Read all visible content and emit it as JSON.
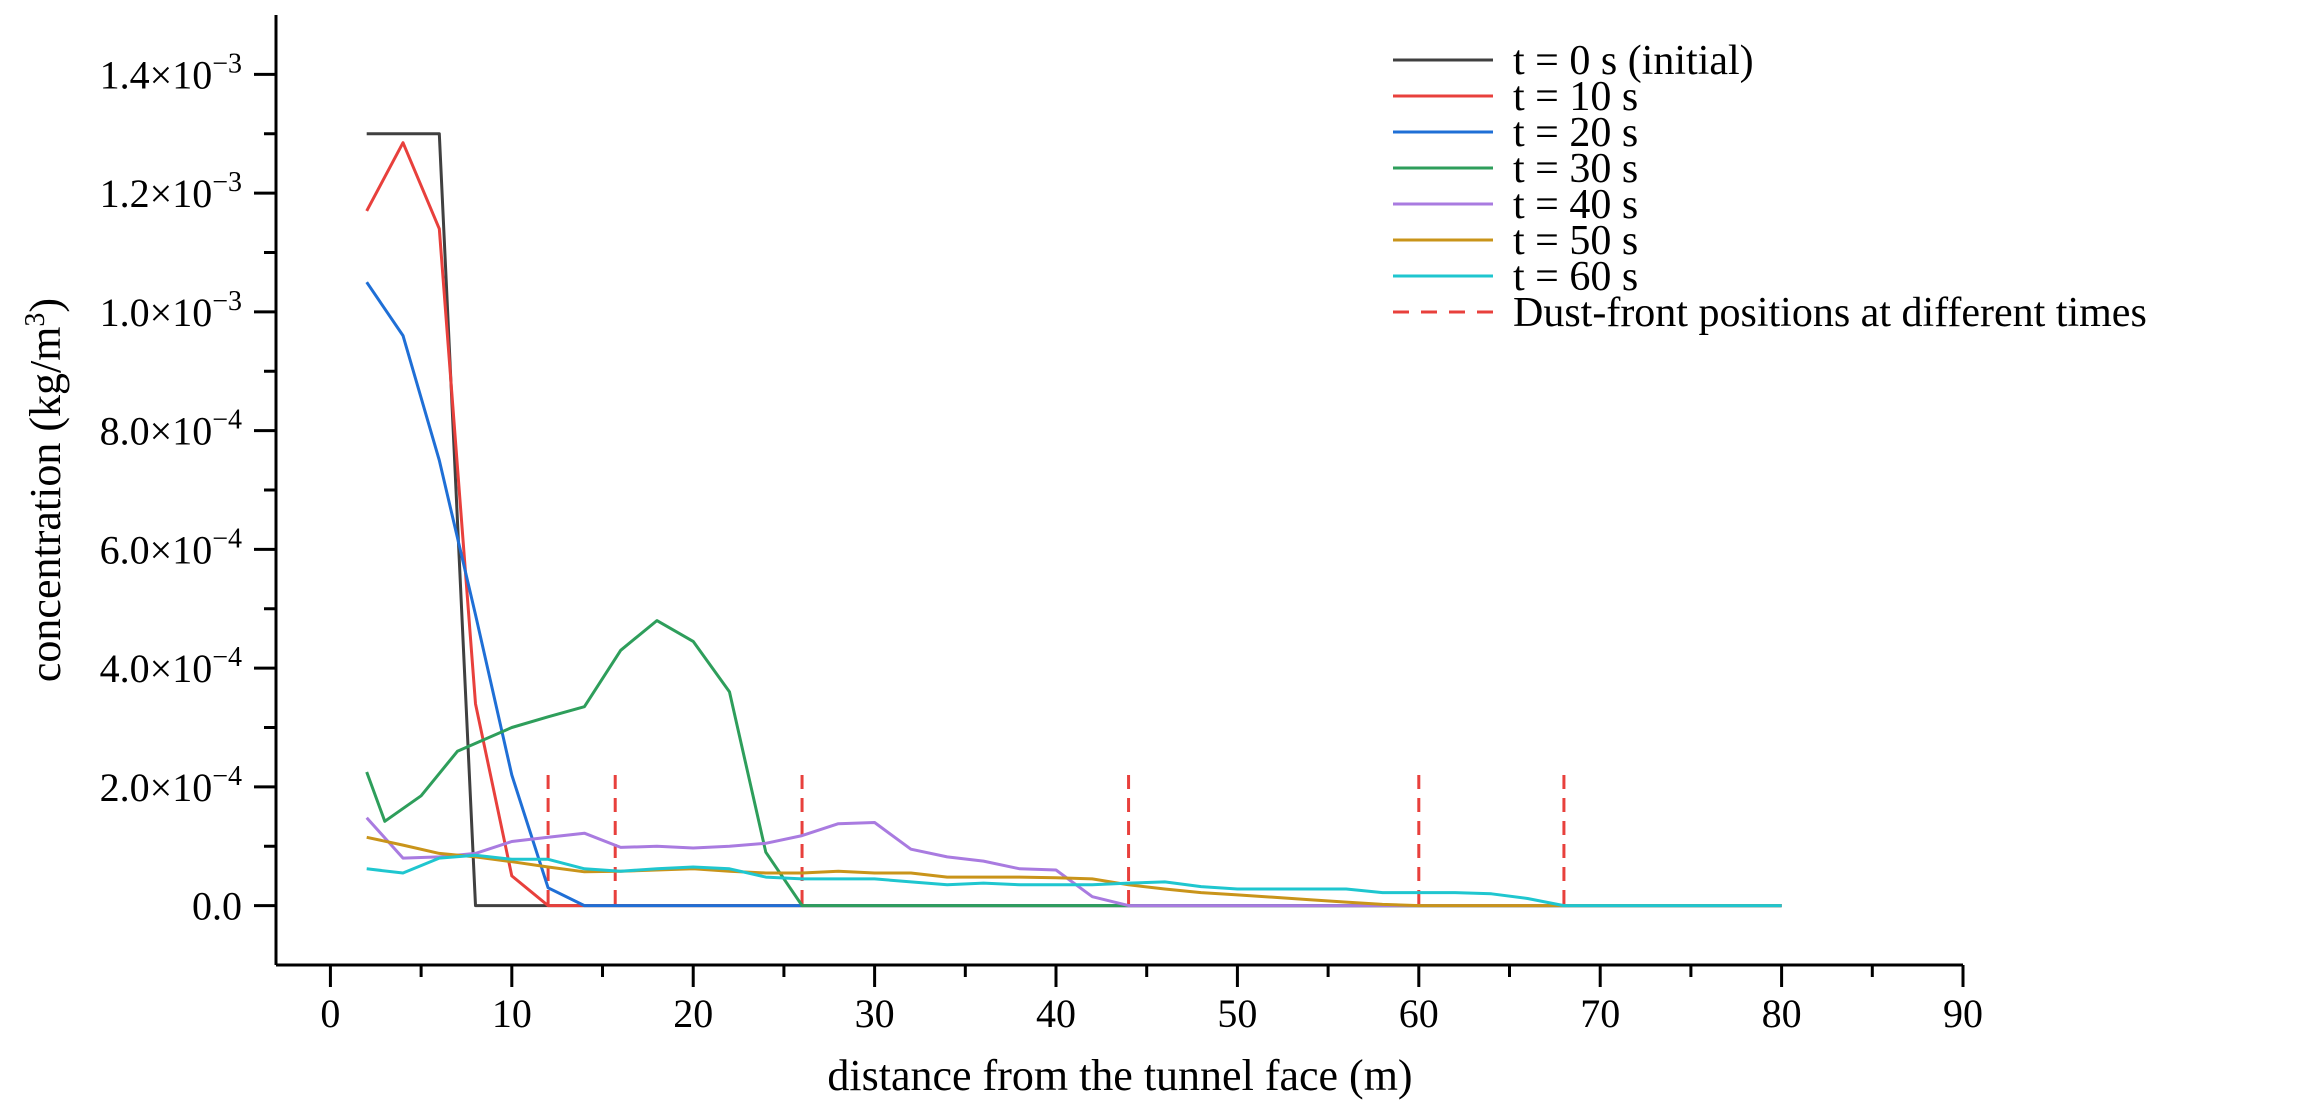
{
  "chart_data": {
    "type": "line",
    "title": "",
    "xlabel": "distance from the tunnel face (m)",
    "ylabel_parts": [
      "concentration (kg/m",
      "3",
      ")"
    ],
    "xlim": [
      -3,
      90
    ],
    "ylim": [
      -0.0001,
      0.0015
    ],
    "xticks": [
      0,
      10,
      20,
      30,
      40,
      50,
      60,
      70,
      80,
      90
    ],
    "yticks": [
      {
        "value": 0.0,
        "label": "0.0",
        "exp": ""
      },
      {
        "value": 0.0002,
        "label": "2.0×10",
        "exp": "−4"
      },
      {
        "value": 0.0004,
        "label": "4.0×10",
        "exp": "−4"
      },
      {
        "value": 0.0006,
        "label": "6.0×10",
        "exp": "−4"
      },
      {
        "value": 0.0008,
        "label": "8.0×10",
        "exp": "−4"
      },
      {
        "value": 0.001,
        "label": "1.0×10",
        "exp": "−3"
      },
      {
        "value": 0.0012,
        "label": "1.2×10",
        "exp": "−3"
      },
      {
        "value": 0.0014,
        "label": "1.4×10",
        "exp": "−3"
      }
    ],
    "series": [
      {
        "name": "t = 0 s (initial)",
        "color": "#404040",
        "points": [
          [
            2,
            0.0013
          ],
          [
            4,
            0.0013
          ],
          [
            6,
            0.0013
          ],
          [
            8,
            0.0
          ],
          [
            10,
            0.0
          ],
          [
            12,
            0.0
          ],
          [
            14,
            0.0
          ],
          [
            16,
            0.0
          ],
          [
            18,
            0.0
          ],
          [
            20,
            0.0
          ],
          [
            22,
            0.0
          ],
          [
            24,
            0.0
          ],
          [
            26,
            0.0
          ],
          [
            28,
            0.0
          ],
          [
            30,
            0.0
          ],
          [
            35,
            0.0
          ],
          [
            40,
            0.0
          ],
          [
            45,
            0.0
          ],
          [
            50,
            0.0
          ],
          [
            55,
            0.0
          ],
          [
            60,
            0.0
          ],
          [
            65,
            0.0
          ],
          [
            70,
            0.0
          ],
          [
            75,
            0.0
          ],
          [
            80,
            0.0
          ]
        ]
      },
      {
        "name": "t = 10 s",
        "color": "#e8403c",
        "points": [
          [
            2,
            0.00117
          ],
          [
            4,
            0.001285
          ],
          [
            6,
            0.00114
          ],
          [
            8,
            0.00034
          ],
          [
            10,
            5e-05
          ],
          [
            12,
            0.0
          ],
          [
            14,
            0.0
          ],
          [
            16,
            0.0
          ],
          [
            18,
            0.0
          ],
          [
            20,
            0.0
          ],
          [
            22,
            0.0
          ],
          [
            24,
            0.0
          ],
          [
            26,
            0.0
          ],
          [
            28,
            0.0
          ],
          [
            30,
            0.0
          ],
          [
            35,
            0.0
          ],
          [
            40,
            0.0
          ],
          [
            45,
            0.0
          ],
          [
            50,
            0.0
          ],
          [
            55,
            0.0
          ],
          [
            60,
            0.0
          ],
          [
            65,
            0.0
          ],
          [
            70,
            0.0
          ],
          [
            75,
            0.0
          ],
          [
            80,
            0.0
          ]
        ]
      },
      {
        "name": "t = 20 s",
        "color": "#1f6fd6",
        "points": [
          [
            2,
            0.00105
          ],
          [
            4,
            0.00096
          ],
          [
            6,
            0.00075
          ],
          [
            8,
            0.00049
          ],
          [
            10,
            0.00022
          ],
          [
            12,
            3e-05
          ],
          [
            14,
            0.0
          ],
          [
            16,
            0.0
          ],
          [
            18,
            0.0
          ],
          [
            20,
            0.0
          ],
          [
            22,
            0.0
          ],
          [
            24,
            0.0
          ],
          [
            26,
            0.0
          ],
          [
            28,
            0.0
          ],
          [
            30,
            0.0
          ],
          [
            35,
            0.0
          ],
          [
            40,
            0.0
          ],
          [
            45,
            0.0
          ],
          [
            50,
            0.0
          ],
          [
            55,
            0.0
          ],
          [
            60,
            0.0
          ],
          [
            65,
            0.0
          ],
          [
            70,
            0.0
          ],
          [
            75,
            0.0
          ],
          [
            80,
            0.0
          ]
        ]
      },
      {
        "name": "t = 30 s",
        "color": "#2e9e5b",
        "points": [
          [
            2,
            0.000225
          ],
          [
            3,
            0.000142
          ],
          [
            5,
            0.000185
          ],
          [
            7,
            0.00026
          ],
          [
            10,
            0.0003
          ],
          [
            12,
            0.000318
          ],
          [
            14,
            0.000335
          ],
          [
            16,
            0.00043
          ],
          [
            18,
            0.00048
          ],
          [
            20,
            0.000445
          ],
          [
            22,
            0.00036
          ],
          [
            24,
            9e-05
          ],
          [
            26,
            0.0
          ],
          [
            28,
            0.0
          ],
          [
            30,
            0.0
          ],
          [
            35,
            0.0
          ],
          [
            40,
            0.0
          ],
          [
            45,
            0.0
          ],
          [
            50,
            0.0
          ],
          [
            55,
            0.0
          ],
          [
            60,
            0.0
          ],
          [
            65,
            0.0
          ],
          [
            70,
            0.0
          ],
          [
            75,
            0.0
          ],
          [
            80,
            0.0
          ]
        ]
      },
      {
        "name": "t = 40 s",
        "color": "#a97be0",
        "points": [
          [
            2,
            0.000148
          ],
          [
            4,
            8e-05
          ],
          [
            6,
            8.2e-05
          ],
          [
            8,
            8.8e-05
          ],
          [
            10,
            0.000108
          ],
          [
            12,
            0.000115
          ],
          [
            14,
            0.000122
          ],
          [
            16,
            9.8e-05
          ],
          [
            18,
            0.0001
          ],
          [
            20,
            9.7e-05
          ],
          [
            22,
            0.0001
          ],
          [
            24,
            0.000105
          ],
          [
            26,
            0.000118
          ],
          [
            28,
            0.000138
          ],
          [
            30,
            0.00014
          ],
          [
            32,
            9.5e-05
          ],
          [
            34,
            8.2e-05
          ],
          [
            36,
            7.5e-05
          ],
          [
            38,
            6.2e-05
          ],
          [
            40,
            6e-05
          ],
          [
            42,
            1.5e-05
          ],
          [
            44,
            0.0
          ],
          [
            48,
            0.0
          ],
          [
            55,
            0.0
          ],
          [
            60,
            0.0
          ],
          [
            65,
            0.0
          ],
          [
            70,
            0.0
          ],
          [
            75,
            0.0
          ],
          [
            80,
            0.0
          ]
        ]
      },
      {
        "name": "t = 50 s",
        "color": "#c9941a",
        "points": [
          [
            2,
            0.000115
          ],
          [
            4,
            0.000102
          ],
          [
            6,
            8.8e-05
          ],
          [
            8,
            8.2e-05
          ],
          [
            10,
            7.4e-05
          ],
          [
            12,
            6.5e-05
          ],
          [
            14,
            5.7e-05
          ],
          [
            16,
            5.8e-05
          ],
          [
            18,
            6e-05
          ],
          [
            20,
            6.2e-05
          ],
          [
            22,
            5.8e-05
          ],
          [
            24,
            5.5e-05
          ],
          [
            26,
            5.5e-05
          ],
          [
            28,
            5.8e-05
          ],
          [
            30,
            5.5e-05
          ],
          [
            32,
            5.5e-05
          ],
          [
            34,
            4.8e-05
          ],
          [
            36,
            4.8e-05
          ],
          [
            38,
            4.8e-05
          ],
          [
            40,
            4.7e-05
          ],
          [
            42,
            4.5e-05
          ],
          [
            44,
            3.5e-05
          ],
          [
            46,
            2.8e-05
          ],
          [
            48,
            2.2e-05
          ],
          [
            50,
            1.8e-05
          ],
          [
            52,
            1.4e-05
          ],
          [
            54,
            1e-05
          ],
          [
            56,
            6e-06
          ],
          [
            58,
            2e-06
          ],
          [
            60,
            0.0
          ],
          [
            65,
            0.0
          ],
          [
            70,
            0.0
          ],
          [
            75,
            0.0
          ],
          [
            80,
            0.0
          ]
        ]
      },
      {
        "name": "t = 60 s",
        "color": "#1fc6cf",
        "points": [
          [
            2,
            6.2e-05
          ],
          [
            4,
            5.5e-05
          ],
          [
            6,
            8e-05
          ],
          [
            8,
            8.5e-05
          ],
          [
            10,
            7.8e-05
          ],
          [
            12,
            7.8e-05
          ],
          [
            14,
            6.2e-05
          ],
          [
            16,
            5.8e-05
          ],
          [
            18,
            6.2e-05
          ],
          [
            20,
            6.5e-05
          ],
          [
            22,
            6.2e-05
          ],
          [
            24,
            4.8e-05
          ],
          [
            26,
            4.5e-05
          ],
          [
            28,
            4.5e-05
          ],
          [
            30,
            4.5e-05
          ],
          [
            32,
            4e-05
          ],
          [
            34,
            3.5e-05
          ],
          [
            36,
            3.8e-05
          ],
          [
            38,
            3.5e-05
          ],
          [
            40,
            3.5e-05
          ],
          [
            42,
            3.5e-05
          ],
          [
            44,
            3.8e-05
          ],
          [
            46,
            4e-05
          ],
          [
            48,
            3.2e-05
          ],
          [
            50,
            2.8e-05
          ],
          [
            52,
            2.8e-05
          ],
          [
            54,
            2.8e-05
          ],
          [
            56,
            2.8e-05
          ],
          [
            58,
            2.2e-05
          ],
          [
            60,
            2.2e-05
          ],
          [
            62,
            2.2e-05
          ],
          [
            64,
            2e-05
          ],
          [
            66,
            1.2e-05
          ],
          [
            68,
            0.0
          ],
          [
            70,
            0.0
          ],
          [
            75,
            0.0
          ],
          [
            80,
            0.0
          ]
        ]
      }
    ],
    "dust_fronts": {
      "name": "Dust-front positions at different times",
      "color": "#e8403c",
      "x": [
        12,
        15.7,
        26,
        44,
        60,
        68
      ],
      "y_range": [
        0,
        0.00022
      ]
    },
    "legend_position": "top-right"
  }
}
